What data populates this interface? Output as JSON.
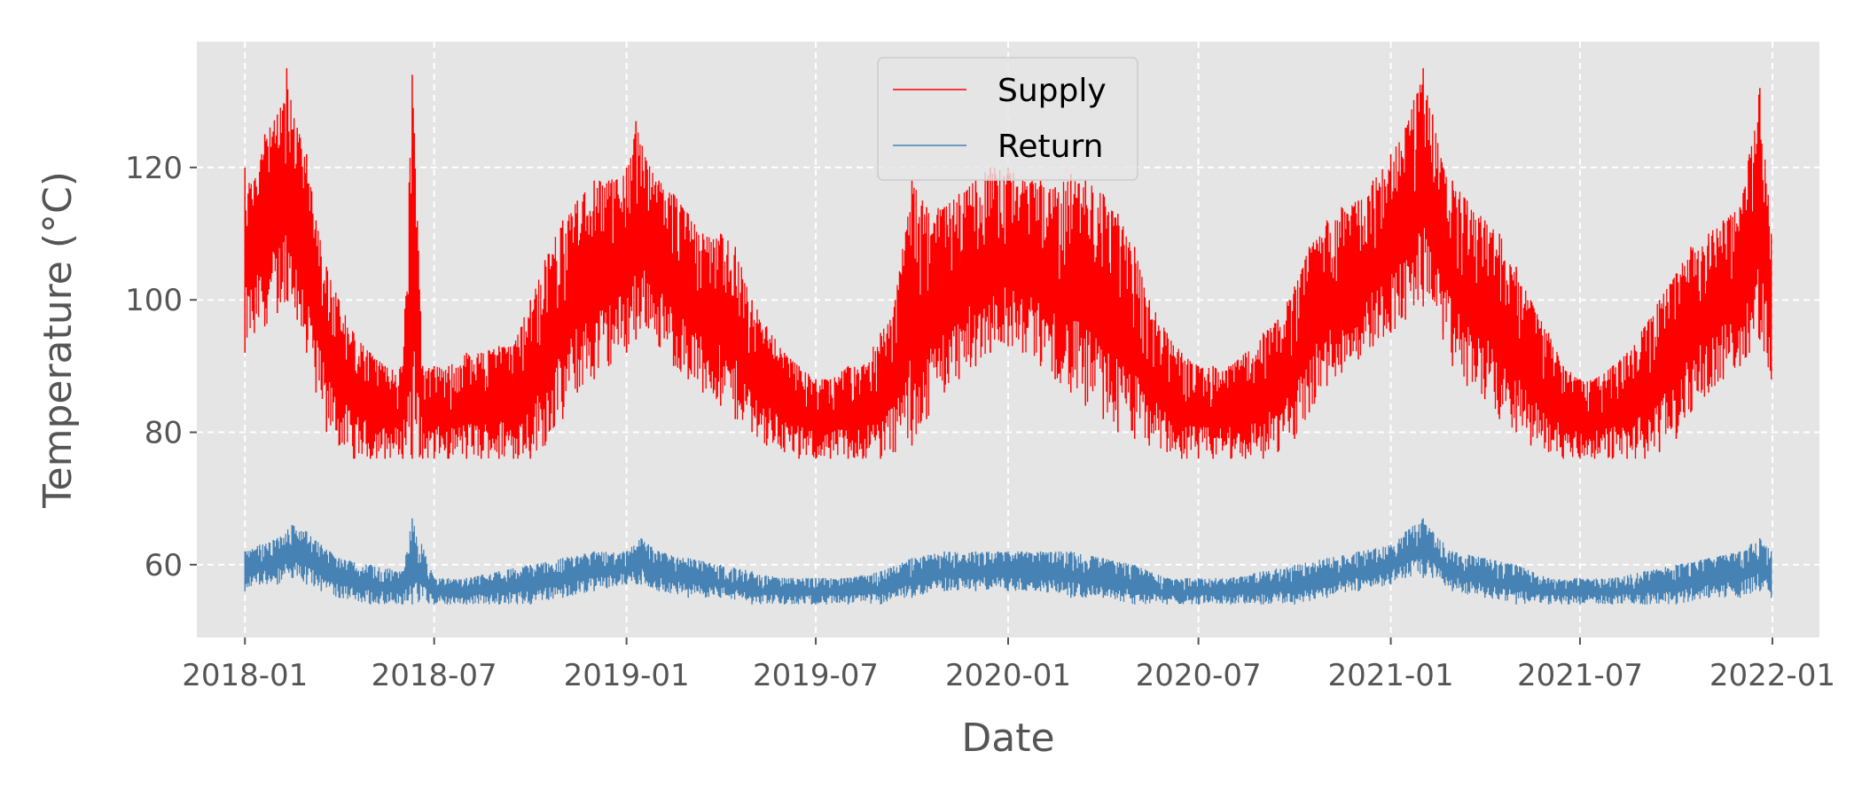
{
  "chart_data": {
    "type": "line",
    "title": "",
    "xlabel": "Date",
    "ylabel": "Temperature (°C)",
    "x_range": [
      "2017-11-16",
      "2022-02-15"
    ],
    "ylim": [
      49,
      139
    ],
    "x_ticks": [
      "2018-01",
      "2018-07",
      "2019-01",
      "2019-07",
      "2020-01",
      "2020-07",
      "2021-01",
      "2021-07",
      "2022-01"
    ],
    "y_ticks": [
      60,
      80,
      100,
      120
    ],
    "grid": true,
    "grid_style": "dashed white",
    "background": "#e5e5e5",
    "legend_position": "top-center",
    "series": [
      {
        "name": "Supply",
        "color": "#ff0000",
        "x": [
          "2018-01-01",
          "2018-01-10",
          "2018-01-20",
          "2018-02-01",
          "2018-02-10",
          "2018-02-20",
          "2018-03-01",
          "2018-03-10",
          "2018-03-20",
          "2018-04-01",
          "2018-04-15",
          "2018-05-01",
          "2018-05-15",
          "2018-06-01",
          "2018-06-10",
          "2018-06-20",
          "2018-07-01",
          "2018-07-15",
          "2018-08-01",
          "2018-08-15",
          "2018-09-01",
          "2018-09-15",
          "2018-10-01",
          "2018-10-15",
          "2018-11-01",
          "2018-11-15",
          "2018-12-01",
          "2018-12-15",
          "2019-01-01",
          "2019-01-10",
          "2019-01-20",
          "2019-02-01",
          "2019-02-15",
          "2019-03-01",
          "2019-03-15",
          "2019-04-01",
          "2019-04-15",
          "2019-05-01",
          "2019-05-15",
          "2019-06-01",
          "2019-06-15",
          "2019-07-01",
          "2019-07-15",
          "2019-08-01",
          "2019-08-15",
          "2019-09-01",
          "2019-09-15",
          "2019-10-01",
          "2019-10-15",
          "2019-11-01",
          "2019-11-15",
          "2019-12-01",
          "2019-12-15",
          "2020-01-01",
          "2020-01-15",
          "2020-02-01",
          "2020-02-15",
          "2020-03-01",
          "2020-03-15",
          "2020-04-01",
          "2020-04-15",
          "2020-05-01",
          "2020-05-15",
          "2020-06-01",
          "2020-06-15",
          "2020-07-01",
          "2020-07-15",
          "2020-08-01",
          "2020-08-15",
          "2020-09-01",
          "2020-09-15",
          "2020-10-01",
          "2020-10-15",
          "2020-11-01",
          "2020-11-15",
          "2020-12-01",
          "2020-12-15",
          "2021-01-01",
          "2021-01-15",
          "2021-02-01",
          "2021-02-10",
          "2021-02-20",
          "2021-03-01",
          "2021-03-15",
          "2021-04-01",
          "2021-04-15",
          "2021-05-01",
          "2021-05-15",
          "2021-06-01",
          "2021-06-15",
          "2021-07-01",
          "2021-07-15",
          "2021-08-01",
          "2021-08-15",
          "2021-09-01",
          "2021-09-15",
          "2021-10-01",
          "2021-10-15",
          "2021-11-01",
          "2021-11-15",
          "2021-12-01",
          "2021-12-10",
          "2021-12-20",
          "2021-12-31"
        ],
        "low": [
          92,
          95,
          96,
          98,
          100,
          97,
          92,
          86,
          80,
          78,
          76,
          76,
          76,
          76,
          76,
          76,
          76,
          76,
          76,
          76,
          76,
          76,
          76,
          78,
          82,
          86,
          88,
          90,
          92,
          94,
          96,
          93,
          90,
          88,
          86,
          84,
          82,
          80,
          78,
          77,
          76,
          76,
          76,
          76,
          76,
          76,
          77,
          78,
          82,
          86,
          88,
          90,
          92,
          93,
          92,
          90,
          88,
          86,
          84,
          82,
          80,
          79,
          78,
          77,
          76,
          76,
          76,
          76,
          76,
          76,
          77,
          79,
          83,
          87,
          89,
          91,
          93,
          95,
          97,
          99,
          100,
          94,
          90,
          87,
          85,
          82,
          80,
          78,
          77,
          76,
          76,
          76,
          76,
          76,
          76,
          77,
          79,
          83,
          86,
          88,
          90,
          92,
          94,
          88
        ],
        "high": [
          120,
          118,
          125,
          128,
          135,
          126,
          122,
          112,
          105,
          100,
          95,
          92,
          90,
          90,
          134,
          90,
          90,
          90,
          92,
          92,
          93,
          93,
          100,
          106,
          112,
          115,
          118,
          118,
          120,
          127,
          121,
          118,
          116,
          113,
          110,
          110,
          108,
          100,
          96,
          92,
          90,
          88,
          88,
          90,
          90,
          95,
          100,
          118,
          114,
          114,
          116,
          118,
          120,
          120,
          118,
          118,
          117,
          119,
          118,
          116,
          113,
          108,
          100,
          95,
          92,
          90,
          90,
          90,
          92,
          95,
          97,
          102,
          108,
          112,
          114,
          115,
          118,
          122,
          126,
          135,
          128,
          120,
          118,
          115,
          112,
          110,
          105,
          100,
          95,
          90,
          88,
          88,
          90,
          92,
          96,
          100,
          104,
          108,
          110,
          112,
          114,
          122,
          132,
          110
        ]
      },
      {
        "name": "Return",
        "color": "#4682b4",
        "x": [
          "2018-01-01",
          "2018-01-15",
          "2018-02-01",
          "2018-02-15",
          "2018-03-01",
          "2018-03-15",
          "2018-04-01",
          "2018-05-01",
          "2018-06-01",
          "2018-06-10",
          "2018-07-01",
          "2018-08-01",
          "2018-09-01",
          "2018-10-01",
          "2018-11-01",
          "2018-12-01",
          "2019-01-01",
          "2019-01-15",
          "2019-02-01",
          "2019-03-01",
          "2019-04-01",
          "2019-05-01",
          "2019-06-01",
          "2019-07-01",
          "2019-08-01",
          "2019-09-01",
          "2019-10-01",
          "2019-11-01",
          "2019-12-01",
          "2020-01-01",
          "2020-02-01",
          "2020-03-01",
          "2020-04-01",
          "2020-05-01",
          "2020-06-01",
          "2020-07-01",
          "2020-08-01",
          "2020-09-01",
          "2020-10-01",
          "2020-11-01",
          "2020-12-01",
          "2021-01-01",
          "2021-01-15",
          "2021-02-01",
          "2021-02-10",
          "2021-03-01",
          "2021-04-01",
          "2021-05-01",
          "2021-06-01",
          "2021-07-01",
          "2021-08-01",
          "2021-09-01",
          "2021-10-01",
          "2021-11-01",
          "2021-12-01",
          "2021-12-20",
          "2021-12-31"
        ],
        "low": [
          56,
          57,
          57,
          58,
          57,
          56,
          55,
          54,
          54,
          54,
          54,
          54,
          54,
          54,
          55,
          56,
          57,
          57,
          56,
          55,
          55,
          54,
          54,
          54,
          54,
          54,
          55,
          56,
          56,
          56,
          56,
          55,
          55,
          54,
          54,
          54,
          54,
          54,
          54,
          55,
          56,
          57,
          58,
          58,
          58,
          56,
          55,
          54,
          54,
          54,
          54,
          54,
          54,
          55,
          55,
          56,
          55
        ],
        "high": [
          62,
          63,
          64,
          66,
          65,
          63,
          61,
          60,
          59,
          67,
          58,
          58,
          59,
          60,
          61,
          62,
          62,
          64,
          62,
          61,
          60,
          59,
          58,
          58,
          58,
          59,
          61,
          62,
          62,
          62,
          62,
          62,
          61,
          60,
          58,
          58,
          58,
          59,
          60,
          61,
          62,
          63,
          65,
          67,
          65,
          62,
          61,
          60,
          58,
          58,
          58,
          59,
          60,
          61,
          62,
          64,
          62
        ]
      }
    ]
  }
}
